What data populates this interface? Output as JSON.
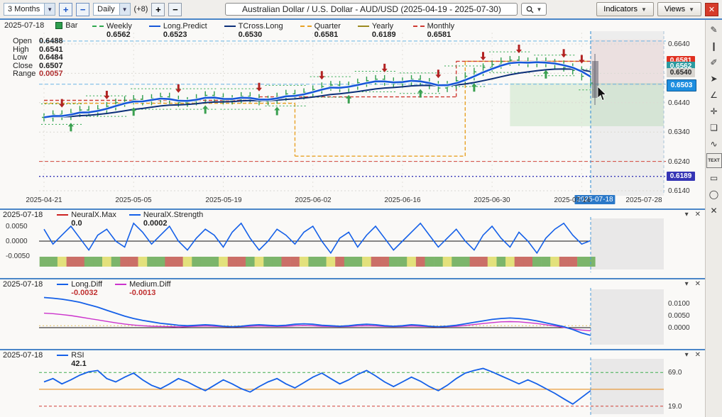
{
  "icons": {
    "chevron_down": "▼",
    "collapse": "▾",
    "close": "✕"
  },
  "toolbar": {
    "range_value": "3 Months",
    "zoom_in": "+",
    "zoom_out": "−",
    "interval_value": "Daily",
    "offset_label": "(+8)",
    "bars_plus": "+",
    "bars_minus": "−",
    "title": "Australian Dollar / U.S. Dollar - AUD/USD (2025-04-19 - 2025-07-30)",
    "indicators": "Indicators",
    "views": "Views"
  },
  "main_chart": {
    "date": "2025-07-18",
    "bar_label": "Bar",
    "ohlc": {
      "open_label": "Open",
      "open": "0.6488",
      "high_label": "High",
      "high": "0.6541",
      "low_label": "Low",
      "low": "0.6484",
      "close_label": "Close",
      "close": "0.6507",
      "range_label": "Range",
      "range": "0.0057",
      "range_color": "#b03030"
    },
    "legend": [
      {
        "name": "Weekly",
        "value": "0.6562",
        "color": "#2fa84e",
        "style": "dashed"
      },
      {
        "name": "Long.Predict",
        "value": "0.6523",
        "color": "#1757d8"
      },
      {
        "name": "TCross.Long",
        "value": "0.6530",
        "color": "#0c2f78"
      },
      {
        "name": "Quarter",
        "value": "0.6581",
        "color": "#e8a226",
        "style": "dashed"
      },
      {
        "name": "Yearly",
        "value": "0.6189",
        "color": "#9c8a20"
      },
      {
        "name": "Monthly",
        "value": "0.6581",
        "color": "#cf3a32",
        "style": "dashed"
      }
    ],
    "y_labels": [
      "0.6640",
      "0.6540",
      "0.6440",
      "0.6340",
      "0.6240",
      "0.6140"
    ],
    "price_tags": [
      {
        "value": "0.6581",
        "color": "#e03020"
      },
      {
        "value": "0.6562",
        "color": "#2a9aa0"
      },
      {
        "value": "0.6540",
        "color": "#d8d5d0",
        "text": "#222"
      },
      {
        "value": "0.6503",
        "color": "#1e8fe0",
        "highlight": true
      },
      {
        "value": "0.6189",
        "color": "#3535b5"
      }
    ],
    "x_labels": [
      "2025-04-21",
      "2025-05-05",
      "2025-05-19",
      "2025-06-02",
      "2025-06-16",
      "2025-06-30",
      "2025-07-14",
      "2025-07-28"
    ],
    "cursor_date": "2025-07-18"
  },
  "panels": [
    {
      "date": "2025-07-18",
      "side": "left",
      "series": [
        {
          "name": "NeuralX.Max",
          "value": "0.0",
          "color": "#cc2222"
        },
        {
          "name": "NeuralX.Strength",
          "value": "0.0002",
          "color": "#1560e8"
        }
      ],
      "y_labels": [
        "0.0050",
        "0.0000",
        "-0.0050"
      ]
    },
    {
      "date": "2025-07-18",
      "side": "right",
      "series": [
        {
          "name": "Long.Diff",
          "value": "-0.0032",
          "color": "#1560e8",
          "value_color": "#c03030"
        },
        {
          "name": "Medium.Diff",
          "value": "-0.0013",
          "color": "#cc33cc",
          "value_color": "#c03030"
        }
      ],
      "y_labels": [
        "0.0100",
        "0.0050",
        "0.0000"
      ]
    },
    {
      "date": "2025-07-18",
      "side": "right",
      "series": [
        {
          "name": "RSI",
          "value": "42.1",
          "color": "#1560e8"
        }
      ],
      "y_labels": [
        "69.0",
        "19.0"
      ]
    }
  ],
  "tools": [
    {
      "name": "pencil",
      "glyph": "✎"
    },
    {
      "name": "cursor",
      "glyph": "❙"
    },
    {
      "name": "pen",
      "glyph": "✐"
    },
    {
      "name": "pointer",
      "glyph": "➤"
    },
    {
      "name": "angle",
      "glyph": "∠"
    },
    {
      "name": "crosshair",
      "glyph": "✛"
    },
    {
      "name": "note",
      "glyph": "❏"
    },
    {
      "name": "wave",
      "glyph": "∿"
    },
    {
      "name": "text",
      "glyph": "TEXT"
    },
    {
      "name": "rectangle",
      "glyph": "▭"
    },
    {
      "name": "ellipse",
      "glyph": "◯"
    },
    {
      "name": "close",
      "glyph": "✕"
    }
  ],
  "chart_data": {
    "type": "ohlc-multi-panel",
    "dates_start": "2025-04-21",
    "dates_end": "2025-07-18",
    "main": {
      "ylim": [
        0.614,
        0.664
      ],
      "closes": [
        0.639,
        0.64,
        0.6395,
        0.6405,
        0.6415,
        0.6408,
        0.6418,
        0.6428,
        0.644,
        0.6448,
        0.6452,
        0.6445,
        0.6455,
        0.646,
        0.645,
        0.644,
        0.6445,
        0.6455,
        0.6465,
        0.6458,
        0.6448,
        0.6452,
        0.6462,
        0.6455,
        0.6445,
        0.645,
        0.646,
        0.647,
        0.6465,
        0.6475,
        0.6485,
        0.6495,
        0.65,
        0.649,
        0.6498,
        0.6508,
        0.6515,
        0.652,
        0.6512,
        0.6505,
        0.6512,
        0.652,
        0.651,
        0.65,
        0.649,
        0.65,
        0.6515,
        0.653,
        0.6545,
        0.656,
        0.657,
        0.658,
        0.6585,
        0.658,
        0.6575,
        0.658,
        0.6575,
        0.657,
        0.656,
        0.655,
        0.653,
        0.6507
      ],
      "buy_signals": [
        3,
        10,
        18,
        26,
        34,
        42,
        48,
        56
      ],
      "sell_signals": [
        2,
        7,
        15,
        24,
        31,
        38,
        44,
        49,
        53,
        58,
        60
      ],
      "levels": {
        "yearly": 0.6189,
        "support": 0.624,
        "current": 0.6503,
        "upper": 0.665
      },
      "quarter_steps": [
        {
          "from": 0,
          "to": 28,
          "value": 0.6438
        },
        {
          "from": 28,
          "to": 47,
          "value": 0.6258
        },
        {
          "from": 47,
          "to": 61,
          "value": 0.6581
        }
      ],
      "monthly_steps": [
        {
          "from": 0,
          "to": 24,
          "value": 0.6448
        },
        {
          "from": 24,
          "to": 46,
          "value": 0.646
        },
        {
          "from": 46,
          "to": 61,
          "value": 0.6581
        }
      ]
    },
    "neuralx": {
      "ylim": [
        -0.0075,
        0.0075
      ],
      "max_value": 0.0,
      "strength": [
        0.004,
        -0.001,
        0.002,
        0.005,
        0.001,
        -0.003,
        0.002,
        0.004,
        0.0,
        -0.002,
        0.006,
        0.003,
        -0.001,
        0.002,
        0.005,
        0.0,
        -0.003,
        0.001,
        0.004,
        0.002,
        -0.002,
        0.003,
        0.006,
        0.001,
        -0.003,
        0.0,
        0.004,
        0.002,
        -0.001,
        0.003,
        0.005,
        0.0,
        -0.004,
        0.001,
        0.003,
        -0.002,
        0.002,
        0.005,
        0.001,
        -0.003,
        0.0,
        0.003,
        0.006,
        0.002,
        -0.002,
        0.001,
        0.004,
        0.0,
        -0.003,
        0.002,
        0.005,
        0.001,
        -0.002,
        0.003,
        0.0,
        -0.004,
        0.001,
        0.004,
        0.006,
        0.002,
        -0.001,
        0.0002
      ],
      "strip": [
        "g",
        "g",
        "y",
        "r",
        "r",
        "g",
        "g",
        "y",
        "g",
        "r",
        "r",
        "y",
        "g",
        "g",
        "r",
        "r",
        "y",
        "g",
        "g",
        "g",
        "y",
        "r",
        "r",
        "g",
        "y",
        "g",
        "g",
        "r",
        "r",
        "y",
        "g",
        "g",
        "y",
        "r",
        "g",
        "g",
        "y",
        "r",
        "r",
        "g",
        "g",
        "y",
        "r",
        "g",
        "g",
        "y",
        "g",
        "g",
        "r",
        "r",
        "y",
        "g",
        "y",
        "r",
        "r",
        "g",
        "g",
        "y",
        "r",
        "r",
        "g",
        "g"
      ]
    },
    "diff": {
      "ylim": [
        -0.005,
        0.0135
      ],
      "long": [
        0.0125,
        0.0122,
        0.0118,
        0.0112,
        0.0105,
        0.0095,
        0.0085,
        0.0072,
        0.006,
        0.0048,
        0.0038,
        0.003,
        0.0024,
        0.0018,
        0.0014,
        0.001,
        0.0008,
        0.001,
        0.0012,
        0.001,
        0.0006,
        0.0004,
        0.0006,
        0.001,
        0.0012,
        0.001,
        0.0008,
        0.001,
        0.0014,
        0.0016,
        0.0014,
        0.001,
        0.0008,
        0.0006,
        0.0008,
        0.0012,
        0.0014,
        0.0012,
        0.0008,
        0.0006,
        0.0008,
        0.0012,
        0.001,
        0.0006,
        0.0004,
        0.0006,
        0.001,
        0.0016,
        0.0022,
        0.0028,
        0.0034,
        0.0038,
        0.004,
        0.0038,
        0.0034,
        0.0028,
        0.002,
        0.0012,
        0.0004,
        -0.0008,
        -0.0022,
        -0.0032
      ],
      "medium": [
        0.006,
        0.0058,
        0.0054,
        0.005,
        0.0044,
        0.0038,
        0.0032,
        0.0026,
        0.002,
        0.0015,
        0.0011,
        0.0008,
        0.0006,
        0.0005,
        0.0004,
        0.0003,
        0.0004,
        0.0006,
        0.0007,
        0.0006,
        0.0004,
        0.0003,
        0.0004,
        0.0006,
        0.0007,
        0.0006,
        0.0005,
        0.0006,
        0.0008,
        0.0009,
        0.0008,
        0.0006,
        0.0005,
        0.0004,
        0.0005,
        0.0007,
        0.0008,
        0.0007,
        0.0005,
        0.0004,
        0.0005,
        0.0007,
        0.0006,
        0.0004,
        0.0003,
        0.0004,
        0.0006,
        0.0009,
        0.0013,
        0.0017,
        0.0021,
        0.0024,
        0.0025,
        0.0024,
        0.0021,
        0.0017,
        0.0012,
        0.0007,
        0.0001,
        -0.0006,
        -0.001,
        -0.0013
      ]
    },
    "rsi": {
      "ylim": [
        0,
        100
      ],
      "overbought": 69.0,
      "mid": 44.0,
      "oversold": 19.0,
      "values": [
        55,
        60,
        52,
        58,
        65,
        70,
        72,
        60,
        55,
        62,
        68,
        58,
        50,
        45,
        52,
        60,
        55,
        48,
        42,
        50,
        58,
        52,
        45,
        40,
        48,
        55,
        60,
        52,
        46,
        54,
        62,
        68,
        60,
        52,
        58,
        66,
        72,
        64,
        55,
        48,
        55,
        62,
        56,
        48,
        42,
        50,
        60,
        68,
        72,
        75,
        70,
        64,
        58,
        52,
        58,
        52,
        45,
        38,
        30,
        22,
        32,
        42.1
      ]
    }
  }
}
